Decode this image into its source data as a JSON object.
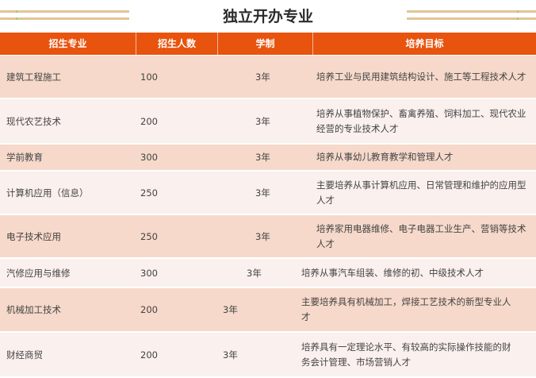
{
  "title": "独立开办专业",
  "headers": [
    "招生专业",
    "招生人数",
    "学制",
    "培养目标"
  ],
  "rows": [
    {
      "major": "建筑工程施工",
      "count": "100",
      "years": "3年",
      "goal": "培养工业与民用建筑结构设计、施工等工程技术人才"
    },
    {
      "major": "现代农艺技术",
      "count": "200",
      "years": "3年",
      "goal": "培养从事植物保护、畜禽养殖、饲料加工、现代农业经营的专业技术人才"
    },
    {
      "major": "学前教育",
      "count": "300",
      "years": "3年",
      "goal": "培养从事幼儿教育教学和管理人才"
    },
    {
      "major": "计算机应用（信息）",
      "count": "250",
      "years": "3年",
      "goal": "主要培养从事计算机应用、日常管理和维护的应用型人才"
    },
    {
      "major": "电子技术应用",
      "count": "250",
      "years": "3年",
      "goal": "培养家用电器维修、电子电器工业生产、营销等技术人才"
    },
    {
      "major": "汽修应用与维修",
      "count": "300",
      "years": "3年",
      "goal": "培养从事汽车组装、维修的初、中级技术人才"
    },
    {
      "major": "机械加工技术",
      "count": "200",
      "years": "3年",
      "goal": "主要培养具有机械加工，焊接工艺技术的新型专业人才"
    },
    {
      "major": "财经商贸",
      "count": "200",
      "years": "3年",
      "goal": "培养具有一定理论水平、有较高的实际操作技能的财务会计管理、市场营销人才"
    }
  ],
  "colors": {
    "header": "#e8530e",
    "row_alt1": "#f6d9ca",
    "row_alt2": "#faf0ee"
  }
}
